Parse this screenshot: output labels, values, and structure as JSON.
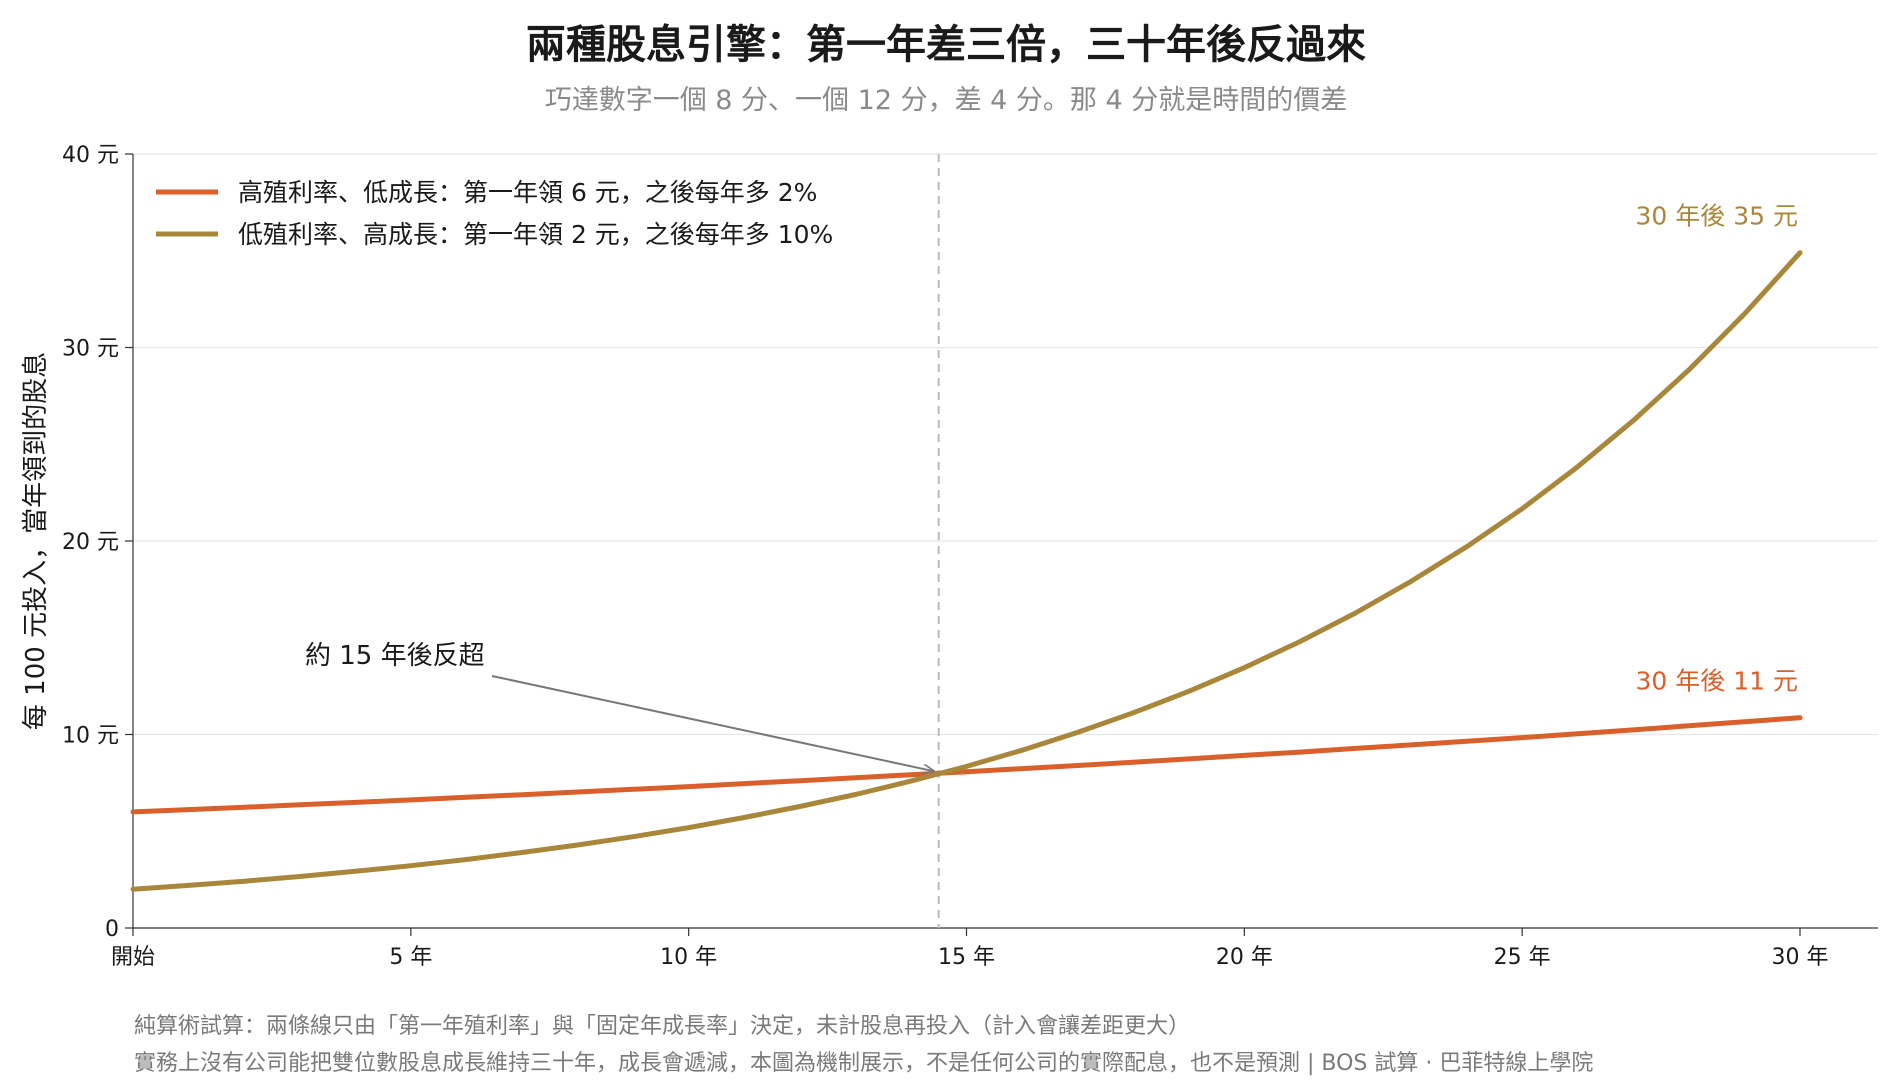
{
  "title": "兩種股息引擎：第一年差三倍，三十年後反過來",
  "subtitle": "巧達數字一個 8 分、一個 12 分，差 4 分。那 4 分就是時間的價差",
  "footnotes": [
    "純算術試算：兩條線只由「第一年殖利率」與「固定年成長率」決定，未計股息再投入（計入會讓差距更大）",
    "實務上沒有公司能把雙位數股息成長維持三十年，成長會遞減，本圖為機制展示，不是任何公司的實際配息，也不是預測 | BOS 試算 · 巴菲特線上學院"
  ],
  "colors": {
    "high_yield": "#d95f2b",
    "high_growth": "#a8873a",
    "crossover_line": "#bbbbbb",
    "arrow": "#777777"
  },
  "chart_data": {
    "type": "line",
    "title": "兩種股息引擎：第一年差三倍，三十年後反過來",
    "ylabel": "每 100 元投入，當年領到的股息",
    "xlabel": "",
    "xlim": [
      0,
      30
    ],
    "ylim": [
      0,
      40
    ],
    "x_ticks": [
      0,
      5,
      10,
      15,
      20,
      25,
      30
    ],
    "x_tick_labels": [
      "開始",
      "5 年",
      "10 年",
      "15 年",
      "20 年",
      "25 年",
      "30 年"
    ],
    "y_ticks": [
      0,
      10,
      20,
      30,
      40
    ],
    "y_tick_labels": [
      "0",
      "10 元",
      "20 元",
      "30 元",
      "40 元"
    ],
    "grid": "horizontal",
    "legend_position": "top-left",
    "crossover_x": 14.5,
    "series": [
      {
        "name": "高殖利率、低成長：第一年領 6 元，之後每年多 2%",
        "color_key": "high_yield",
        "x": [
          0,
          1,
          2,
          3,
          4,
          5,
          6,
          7,
          8,
          9,
          10,
          11,
          12,
          13,
          14,
          15,
          16,
          17,
          18,
          19,
          20,
          21,
          22,
          23,
          24,
          25,
          26,
          27,
          28,
          29,
          30
        ],
        "values": [
          6.0,
          6.12,
          6.24,
          6.37,
          6.49,
          6.62,
          6.76,
          6.89,
          7.03,
          7.17,
          7.31,
          7.46,
          7.61,
          7.76,
          7.92,
          8.08,
          8.24,
          8.4,
          8.57,
          8.74,
          8.92,
          9.09,
          9.28,
          9.46,
          9.65,
          9.84,
          10.04,
          10.24,
          10.45,
          10.66,
          10.87
        ],
        "end_label": "30 年後 11 元"
      },
      {
        "name": "低殖利率、高成長：第一年領 2 元，之後每年多 10%",
        "color_key": "high_growth",
        "x": [
          0,
          1,
          2,
          3,
          4,
          5,
          6,
          7,
          8,
          9,
          10,
          11,
          12,
          13,
          14,
          15,
          16,
          17,
          18,
          19,
          20,
          21,
          22,
          23,
          24,
          25,
          26,
          27,
          28,
          29,
          30
        ],
        "values": [
          2.0,
          2.2,
          2.42,
          2.66,
          2.93,
          3.22,
          3.54,
          3.9,
          4.29,
          4.72,
          5.19,
          5.71,
          6.28,
          6.9,
          7.59,
          8.35,
          9.19,
          10.11,
          11.12,
          12.23,
          13.45,
          14.8,
          16.28,
          17.91,
          19.7,
          21.67,
          23.84,
          26.22,
          28.84,
          31.73,
          34.9
        ],
        "end_label": "30 年後 35 元"
      }
    ],
    "annotations": [
      {
        "text": "約 15 年後反超",
        "x": 14.5,
        "y": 8.0
      }
    ]
  }
}
